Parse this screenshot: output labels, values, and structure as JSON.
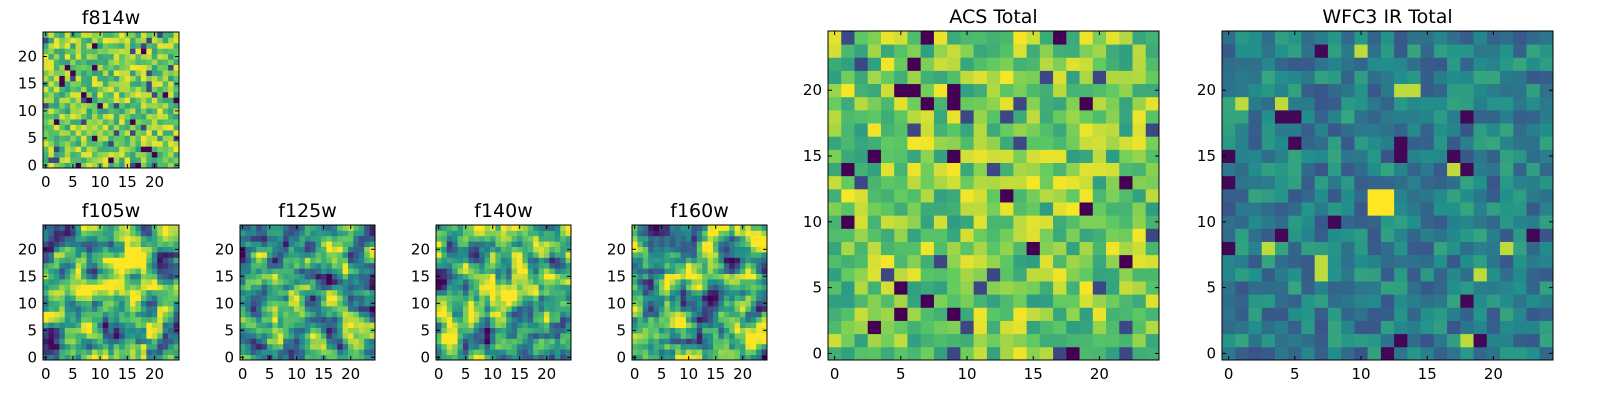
{
  "chart_data": [
    {
      "type": "heatmap",
      "title": "f814w",
      "colormap": "viridis",
      "grid_size": 25,
      "xticks": [
        0,
        5,
        10,
        15,
        20
      ],
      "yticks": [
        0,
        5,
        10,
        15,
        20
      ],
      "xlim": [
        0,
        24
      ],
      "ylim": [
        0,
        24
      ],
      "value_range": [
        0,
        1
      ],
      "grid": false,
      "values_note": "per-pixel noise values estimated"
    },
    {
      "type": "heatmap",
      "title": "f105w",
      "colormap": "viridis",
      "grid_size": 25,
      "xticks": [
        0,
        5,
        10,
        15,
        20
      ],
      "yticks": [
        0,
        5,
        10,
        15,
        20
      ],
      "xlim": [
        0,
        24
      ],
      "ylim": [
        0,
        24
      ],
      "value_range": [
        0,
        1
      ],
      "grid": false
    },
    {
      "type": "heatmap",
      "title": "f125w",
      "colormap": "viridis",
      "grid_size": 25,
      "xticks": [
        0,
        5,
        10,
        15,
        20
      ],
      "yticks": [
        0,
        5,
        10,
        15,
        20
      ],
      "xlim": [
        0,
        24
      ],
      "ylim": [
        0,
        24
      ],
      "value_range": [
        0,
        1
      ],
      "grid": false
    },
    {
      "type": "heatmap",
      "title": "f140w",
      "colormap": "viridis",
      "grid_size": 25,
      "xticks": [
        0,
        5,
        10,
        15,
        20
      ],
      "yticks": [
        0,
        5,
        10,
        15,
        20
      ],
      "xlim": [
        0,
        24
      ],
      "ylim": [
        0,
        24
      ],
      "value_range": [
        0,
        1
      ],
      "grid": false
    },
    {
      "type": "heatmap",
      "title": "f160w",
      "colormap": "viridis",
      "grid_size": 25,
      "xticks": [
        0,
        5,
        10,
        15,
        20
      ],
      "yticks": [
        0,
        5,
        10,
        15,
        20
      ],
      "xlim": [
        0,
        24
      ],
      "ylim": [
        0,
        24
      ],
      "value_range": [
        0,
        1
      ],
      "grid": false
    },
    {
      "type": "heatmap",
      "title": "ACS Total",
      "colormap": "viridis",
      "grid_size": 25,
      "xticks": [
        0,
        5,
        10,
        15,
        20
      ],
      "yticks": [
        0,
        5,
        10,
        15,
        20
      ],
      "xlim": [
        0,
        24
      ],
      "ylim": [
        0,
        24
      ],
      "value_range": [
        0,
        1
      ],
      "grid": false
    },
    {
      "type": "heatmap",
      "title": "WFC3 IR Total",
      "colormap": "viridis",
      "grid_size": 25,
      "xticks": [
        0,
        5,
        10,
        15,
        20
      ],
      "yticks": [
        0,
        5,
        10,
        15,
        20
      ],
      "xlim": [
        0,
        24
      ],
      "ylim": [
        0,
        24
      ],
      "value_range": [
        0,
        1
      ],
      "grid": false,
      "bright_source": {
        "x": [
          11,
          12
        ],
        "y": [
          11,
          12
        ]
      }
    }
  ],
  "colors": {
    "viridis": [
      "#440154",
      "#3b528b",
      "#21918c",
      "#5ec962",
      "#fde725"
    ],
    "axes": "#000000",
    "background": "#ffffff"
  }
}
